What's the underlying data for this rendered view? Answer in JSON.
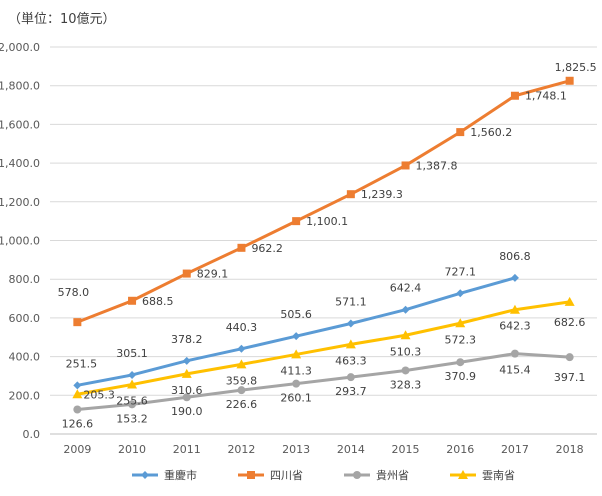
{
  "unit_label": "（単位：10億元）",
  "chart_data": {
    "type": "line",
    "categories": [
      "2009",
      "2010",
      "2011",
      "2012",
      "2013",
      "2014",
      "2015",
      "2016",
      "2017",
      "2018"
    ],
    "ylim": [
      0,
      2000
    ],
    "y_ticks": [
      "0.0",
      "200.0",
      "400.0",
      "600.0",
      "800.0",
      "1,000.0",
      "1,200.0",
      "1,400.0",
      "1,600.0",
      "1,800.0",
      "2,000.0"
    ],
    "grid": true,
    "legend_position": "bottom",
    "series": [
      {
        "name": "重慶市",
        "color": "#5B9BD5",
        "marker": "diamond",
        "values": [
          251.5,
          305.1,
          378.2,
          440.3,
          505.6,
          571.1,
          642.4,
          727.1,
          806.8,
          null
        ],
        "labels": [
          "251.5",
          "305.1",
          "378.2",
          "440.3",
          "505.6",
          "571.1",
          "642.4",
          "727.1",
          "806.8",
          ""
        ]
      },
      {
        "name": "四川省",
        "color": "#ED7D31",
        "marker": "square",
        "values": [
          578.0,
          688.5,
          829.1,
          962.2,
          1100.1,
          1239.3,
          1387.8,
          1560.2,
          1748.1,
          1825.5
        ],
        "labels": [
          "578.0",
          "688.5",
          "829.1",
          "962.2",
          "1,100.1",
          "1,239.3",
          "1,387.8",
          "1,560.2",
          "1,748.1",
          "1,825.5"
        ]
      },
      {
        "name": "貴州省",
        "color": "#A5A5A5",
        "marker": "circle",
        "values": [
          126.6,
          153.2,
          190.0,
          226.6,
          260.1,
          293.7,
          328.3,
          370.9,
          415.4,
          397.1
        ],
        "labels": [
          "126.6",
          "153.2",
          "190.0",
          "226.6",
          "260.1",
          "293.7",
          "328.3",
          "370.9",
          "415.4",
          "397.1"
        ]
      },
      {
        "name": "雲南省",
        "color": "#FFC000",
        "marker": "triangle",
        "values": [
          205.3,
          255.6,
          310.6,
          359.8,
          411.3,
          463.3,
          510.3,
          572.3,
          642.3,
          682.6
        ],
        "labels": [
          "205.3",
          "255.6",
          "310.6",
          "359.8",
          "411.3",
          "463.3",
          "510.3",
          "572.3",
          "642.3",
          "682.6"
        ]
      }
    ]
  }
}
